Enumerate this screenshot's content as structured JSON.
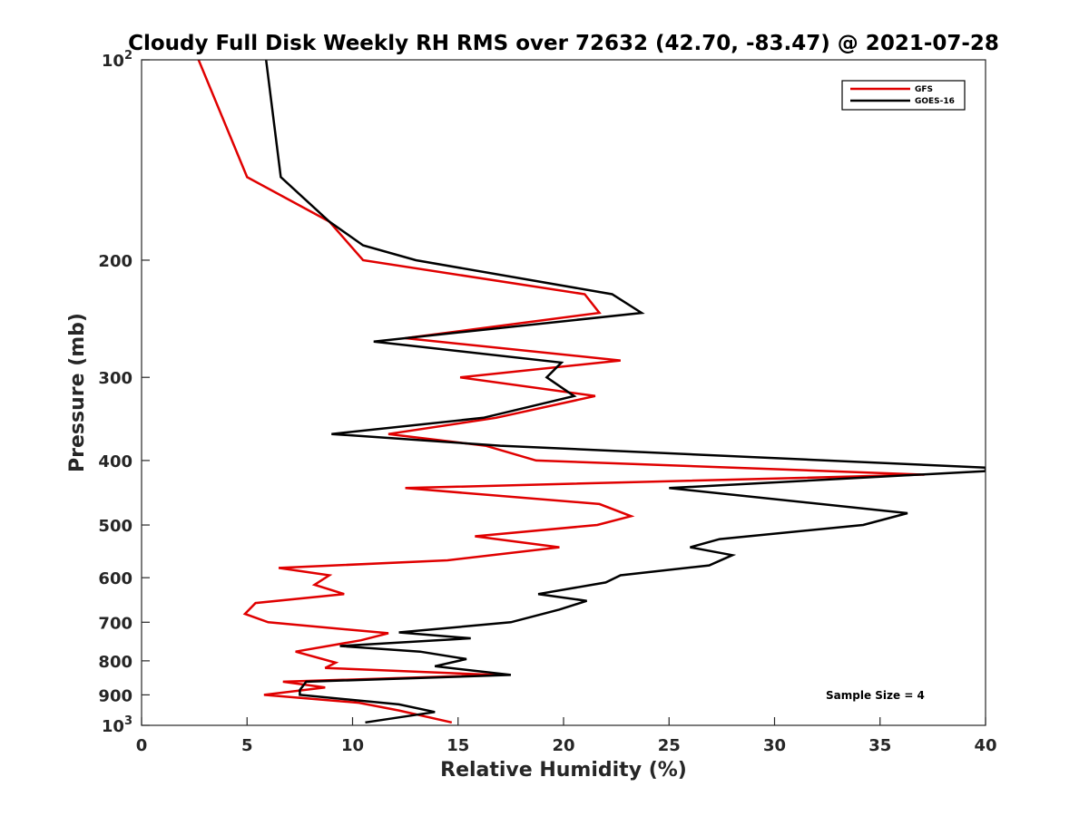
{
  "chart_data": {
    "type": "line",
    "title": "Cloudy Full Disk Weekly RH RMS over 72632 (42.70, -83.47) @ 2021-07-28",
    "xlabel": "Relative Humidity (%)",
    "ylabel": "Pressure (mb)",
    "xlim": [
      0,
      40
    ],
    "ylim": [
      100,
      1000
    ],
    "y_scale": "log",
    "y_reversed": true,
    "grid": false,
    "legend_position": "top-right",
    "xticks": [
      0,
      5,
      10,
      15,
      20,
      25,
      30,
      35,
      40
    ],
    "yticks": [
      {
        "value": 100,
        "label": "10",
        "sup": "2"
      },
      {
        "value": 200,
        "label": "200",
        "sup": ""
      },
      {
        "value": 300,
        "label": "300",
        "sup": ""
      },
      {
        "value": 400,
        "label": "400",
        "sup": ""
      },
      {
        "value": 500,
        "label": "500",
        "sup": ""
      },
      {
        "value": 600,
        "label": "600",
        "sup": ""
      },
      {
        "value": 700,
        "label": "700",
        "sup": ""
      },
      {
        "value": 800,
        "label": "800",
        "sup": ""
      },
      {
        "value": 900,
        "label": "900",
        "sup": ""
      },
      {
        "value": 1000,
        "label": "10",
        "sup": "3"
      }
    ],
    "series": [
      {
        "name": "GFS",
        "color": "#e00000",
        "points": [
          [
            2.7,
            100
          ],
          [
            5.0,
            150
          ],
          [
            8.9,
            175
          ],
          [
            10.5,
            200
          ],
          [
            21.0,
            225
          ],
          [
            21.7,
            240
          ],
          [
            12.5,
            262
          ],
          [
            22.7,
            283
          ],
          [
            15.1,
            300
          ],
          [
            21.5,
            320
          ],
          [
            16.8,
            345
          ],
          [
            11.7,
            365
          ],
          [
            16.3,
            380
          ],
          [
            18.7,
            400
          ],
          [
            37.1,
            420
          ],
          [
            12.5,
            440
          ],
          [
            21.7,
            465
          ],
          [
            23.2,
            485
          ],
          [
            21.6,
            500
          ],
          [
            15.8,
            520
          ],
          [
            19.8,
            540
          ],
          [
            14.5,
            565
          ],
          [
            6.5,
            580
          ],
          [
            8.9,
            595
          ],
          [
            8.2,
            615
          ],
          [
            9.6,
            635
          ],
          [
            5.4,
            655
          ],
          [
            4.9,
            680
          ],
          [
            6.0,
            700
          ],
          [
            11.7,
            727
          ],
          [
            10.4,
            745
          ],
          [
            7.3,
            775
          ],
          [
            9.2,
            805
          ],
          [
            8.7,
            820
          ],
          [
            16.8,
            840
          ],
          [
            6.7,
            860
          ],
          [
            8.7,
            877
          ],
          [
            5.8,
            900
          ],
          [
            10.3,
            925
          ],
          [
            12.2,
            950
          ],
          [
            14.7,
            990
          ]
        ]
      },
      {
        "name": "GOES-16",
        "color": "#000000",
        "points": [
          [
            5.9,
            100
          ],
          [
            6.6,
            150
          ],
          [
            8.9,
            175
          ],
          [
            10.5,
            190
          ],
          [
            13.0,
            200
          ],
          [
            22.3,
            225
          ],
          [
            23.7,
            240
          ],
          [
            11.0,
            265
          ],
          [
            19.9,
            285
          ],
          [
            19.2,
            300
          ],
          [
            20.5,
            320
          ],
          [
            16.2,
            345
          ],
          [
            9.0,
            365
          ],
          [
            17.0,
            380
          ],
          [
            40.0,
            410
          ],
          [
            40.0,
            415
          ],
          [
            25.0,
            440
          ],
          [
            36.3,
            480
          ],
          [
            34.2,
            500
          ],
          [
            27.4,
            525
          ],
          [
            26.0,
            540
          ],
          [
            28.0,
            555
          ],
          [
            26.9,
            575
          ],
          [
            22.7,
            595
          ],
          [
            22.0,
            610
          ],
          [
            18.8,
            635
          ],
          [
            21.1,
            650
          ],
          [
            19.8,
            670
          ],
          [
            17.5,
            700
          ],
          [
            12.2,
            725
          ],
          [
            15.6,
            740
          ],
          [
            9.4,
            760
          ],
          [
            13.2,
            775
          ],
          [
            15.4,
            795
          ],
          [
            13.9,
            815
          ],
          [
            17.5,
            840
          ],
          [
            7.8,
            860
          ],
          [
            7.5,
            885
          ],
          [
            7.5,
            900
          ],
          [
            12.2,
            930
          ],
          [
            13.9,
            955
          ],
          [
            10.6,
            990
          ]
        ]
      }
    ],
    "annotation": "Sample Size = 4"
  }
}
